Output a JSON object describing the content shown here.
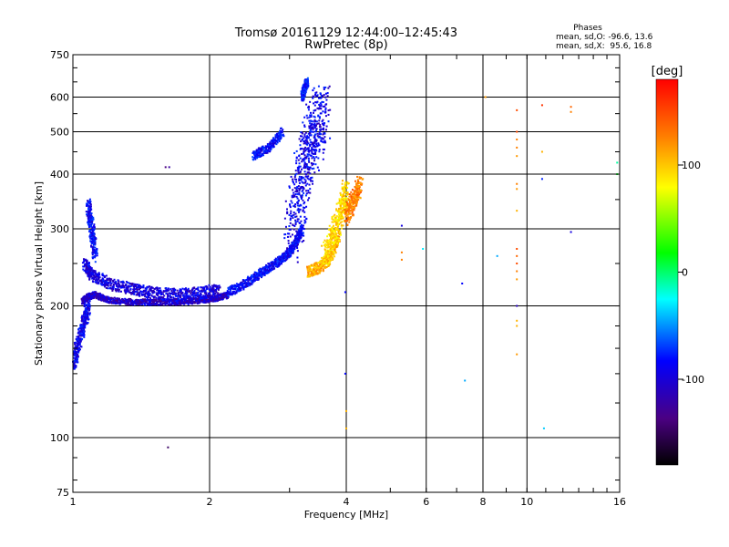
{
  "chart_data": {
    "type": "scatter",
    "title": "Tromsø 20161129 12:44:00–12:45:43",
    "subtitle": "RwPretec (8p)",
    "xlabel": "Frequency [MHz]",
    "ylabel": "Stationary phase Virtual Height [km]",
    "x_scale": "log",
    "y_scale": "log",
    "xlim": [
      1,
      16
    ],
    "ylim": [
      75,
      750
    ],
    "x_ticks": [
      1,
      2,
      4,
      6,
      8,
      10,
      16
    ],
    "y_ticks": [
      75,
      100,
      200,
      300,
      400,
      500,
      600,
      750
    ],
    "grid": true,
    "stats": {
      "heading": "Phases",
      "line_o": "mean, sd,O: -96.6, 13.6",
      "line_x": "mean, sd,X:  95.6, 16.8"
    },
    "colorbar": {
      "label": "[deg]",
      "range": [
        -180,
        180
      ],
      "ticks": [
        100,
        0,
        -100
      ],
      "colormap": "rainbow"
    },
    "series": [
      {
        "trace": "O-mode trace",
        "segments": [
          {
            "freq": [
              1.0,
              1.03,
              1.06,
              1.08
            ],
            "height": [
              145,
              165,
              185,
              200
            ],
            "phase": -105,
            "spread": 0.05
          },
          {
            "freq": [
              1.05,
              1.08,
              1.12,
              1.2,
              1.35,
              1.5,
              1.7,
              1.9,
              2.05,
              2.2
            ],
            "height": [
              205,
              210,
              212,
              206,
              204,
              204,
              204,
              206,
              208,
              212
            ],
            "phase": -118,
            "spread": 0.02
          },
          {
            "freq": [
              1.06,
              1.1,
              1.2,
              1.35,
              1.5,
              1.7,
              1.9,
              2.1
            ],
            "height": [
              250,
              235,
              225,
              218,
              214,
              212,
              214,
              218
            ],
            "phase": -110,
            "spread": 0.04
          },
          {
            "freq": [
              1.08,
              1.1,
              1.12
            ],
            "height": [
              340,
              300,
              260
            ],
            "phase": -100,
            "spread": 0.05
          },
          {
            "freq": [
              2.2,
              2.4,
              2.6,
              2.8,
              3.0,
              3.1,
              3.2
            ],
            "height": [
              215,
              225,
              238,
              250,
              265,
              280,
              300
            ],
            "phase": -100,
            "spread": 0.03
          },
          {
            "freq": [
              3.05,
              3.15,
              3.25,
              3.35,
              3.45,
              3.55
            ],
            "height": [
              290,
              350,
              420,
              480,
              520,
              560
            ],
            "phase": -105,
            "spread": 0.18
          },
          {
            "freq": [
              3.2,
              3.24,
              3.28
            ],
            "height": [
              600,
              630,
              650
            ],
            "phase": -95,
            "spread": 0.03
          },
          {
            "freq": [
              2.5,
              2.7,
              2.9
            ],
            "height": [
              440,
              460,
              500
            ],
            "phase": -98,
            "spread": 0.03
          }
        ]
      },
      {
        "trace": "X-mode trace",
        "segments": [
          {
            "freq": [
              3.3,
              3.5,
              3.7,
              3.85
            ],
            "height": [
              240,
              245,
              260,
              290
            ],
            "phase": 110,
            "spread": 0.04
          },
          {
            "freq": [
              3.6,
              3.75,
              3.9,
              4.0
            ],
            "height": [
              260,
              290,
              330,
              370
            ],
            "phase": 95,
            "spread": 0.08
          },
          {
            "freq": [
              4.0,
              4.15,
              4.3
            ],
            "height": [
              320,
              350,
              380
            ],
            "phase": 130,
            "spread": 0.06
          }
        ]
      }
    ],
    "scattered_points": [
      {
        "freq": 1.6,
        "height": 415,
        "phase": -140
      },
      {
        "freq": 1.63,
        "height": 415,
        "phase": -130
      },
      {
        "freq": 1.62,
        "height": 95,
        "phase": -150
      },
      {
        "freq": 3.98,
        "height": 215,
        "phase": -100
      },
      {
        "freq": 3.98,
        "height": 140,
        "phase": -100
      },
      {
        "freq": 4.0,
        "height": 105,
        "phase": 110
      },
      {
        "freq": 4.0,
        "height": 115,
        "phase": 110
      },
      {
        "freq": 5.3,
        "height": 305,
        "phase": -110
      },
      {
        "freq": 5.3,
        "height": 255,
        "phase": 130
      },
      {
        "freq": 5.3,
        "height": 265,
        "phase": 130
      },
      {
        "freq": 5.9,
        "height": 270,
        "phase": -30
      },
      {
        "freq": 7.2,
        "height": 225,
        "phase": -100
      },
      {
        "freq": 7.3,
        "height": 135,
        "phase": -50
      },
      {
        "freq": 8.6,
        "height": 260,
        "phase": -50
      },
      {
        "freq": 8.1,
        "height": 600,
        "phase": 120
      },
      {
        "freq": 9.5,
        "height": 560,
        "phase": 150
      },
      {
        "freq": 9.5,
        "height": 500,
        "phase": 150
      },
      {
        "freq": 9.5,
        "height": 480,
        "phase": 130
      },
      {
        "freq": 9.5,
        "height": 460,
        "phase": 130
      },
      {
        "freq": 9.5,
        "height": 440,
        "phase": 120
      },
      {
        "freq": 9.5,
        "height": 380,
        "phase": 130
      },
      {
        "freq": 9.5,
        "height": 370,
        "phase": 120
      },
      {
        "freq": 9.5,
        "height": 330,
        "phase": 110
      },
      {
        "freq": 9.5,
        "height": 270,
        "phase": 150
      },
      {
        "freq": 9.5,
        "height": 260,
        "phase": 140
      },
      {
        "freq": 9.5,
        "height": 250,
        "phase": 150
      },
      {
        "freq": 9.5,
        "height": 240,
        "phase": 130
      },
      {
        "freq": 9.5,
        "height": 230,
        "phase": 120
      },
      {
        "freq": 9.5,
        "height": 200,
        "phase": -120
      },
      {
        "freq": 9.5,
        "height": 185,
        "phase": 110
      },
      {
        "freq": 9.5,
        "height": 180,
        "phase": 110
      },
      {
        "freq": 9.5,
        "height": 155,
        "phase": 120
      },
      {
        "freq": 10.8,
        "height": 575,
        "phase": 160
      },
      {
        "freq": 10.8,
        "height": 450,
        "phase": 110
      },
      {
        "freq": 10.8,
        "height": 390,
        "phase": -90
      },
      {
        "freq": 10.9,
        "height": 105,
        "phase": -40
      },
      {
        "freq": 12.5,
        "height": 570,
        "phase": 140
      },
      {
        "freq": 12.5,
        "height": 555,
        "phase": 130
      },
      {
        "freq": 12.5,
        "height": 295,
        "phase": -110
      },
      {
        "freq": 15.8,
        "height": 425,
        "phase": -10
      },
      {
        "freq": 15.8,
        "height": 400,
        "phase": 10
      }
    ]
  }
}
